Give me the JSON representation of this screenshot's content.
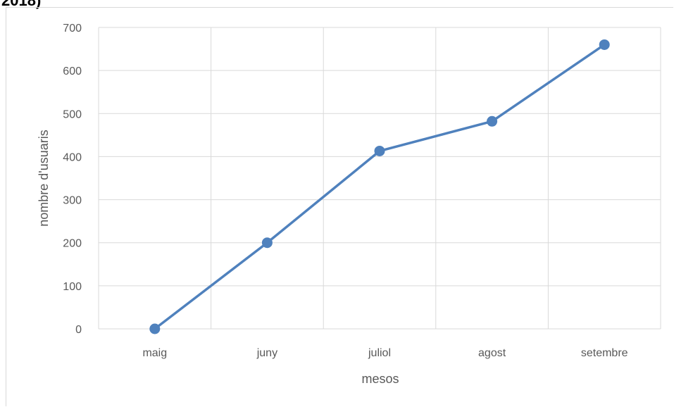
{
  "header": {
    "title_fragment": "2018)"
  },
  "chart_data": {
    "type": "line",
    "categories": [
      "maig",
      "juny",
      "juliol",
      "agost",
      "setembre"
    ],
    "series": [
      {
        "values": [
          0,
          200,
          413,
          482,
          660
        ]
      }
    ],
    "xlabel": "mesos",
    "ylabel": "nombre d'usuaris",
    "ylim": [
      0,
      700
    ],
    "yticks": [
      0,
      100,
      200,
      300,
      400,
      500,
      600,
      700
    ],
    "grid": true,
    "legend": "none",
    "colors": {
      "series": "#4f81bd",
      "grid": "#d9d9d9",
      "text": "#595959"
    }
  }
}
